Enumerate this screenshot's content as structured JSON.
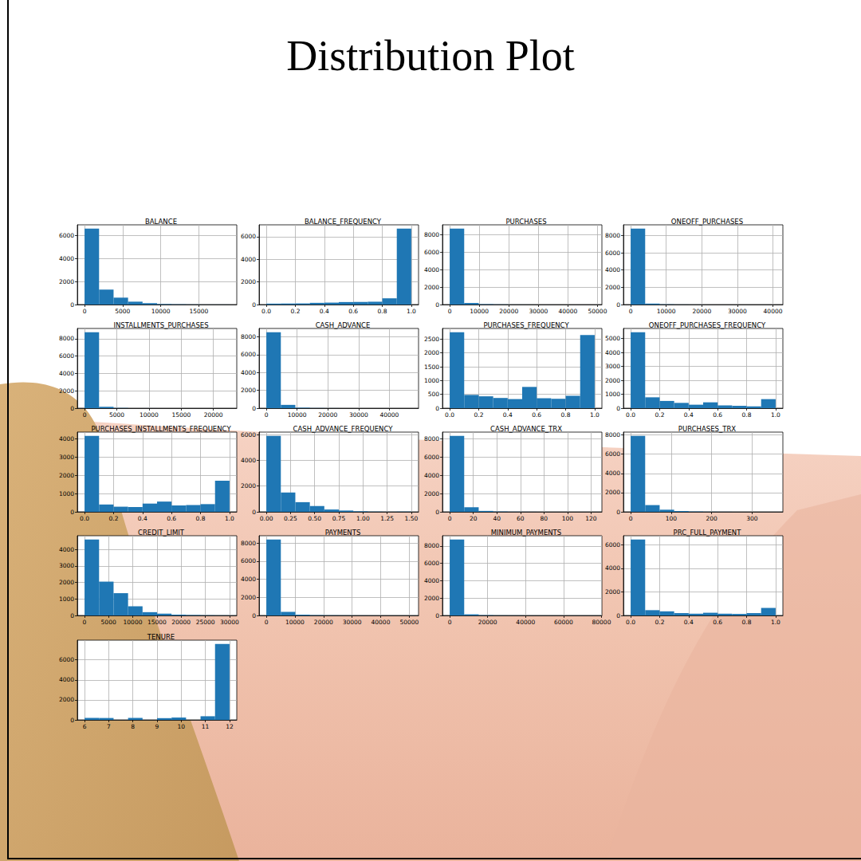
{
  "title": "Distribution Plot",
  "chart_data": [
    {
      "type": "histogram",
      "title": "BALANCE",
      "color": "#1f77b4",
      "grid": true,
      "bins": [
        0,
        1904.3,
        3808.6,
        5712.9,
        7617.3,
        9521.6,
        11425.9,
        13330.2,
        15234.5,
        17138.8,
        19043.1
      ],
      "values": [
        6600,
        1300,
        600,
        250,
        120,
        40,
        20,
        10,
        5,
        5
      ],
      "xlim": [
        -952.2,
        19995.3
      ],
      "xticks": [
        0,
        5000,
        10000,
        15000
      ],
      "ylim": [
        0,
        6930
      ],
      "yticks": [
        0,
        2000,
        4000,
        6000
      ]
    },
    {
      "type": "histogram",
      "title": "BALANCE_FREQUENCY",
      "color": "#1f77b4",
      "grid": true,
      "bins": [
        0,
        0.1,
        0.2,
        0.3,
        0.4,
        0.5,
        0.6,
        0.7,
        0.8,
        0.9,
        1
      ],
      "values": [
        80,
        90,
        100,
        150,
        170,
        220,
        230,
        250,
        550,
        6710
      ],
      "xlim": [
        -0.05,
        1.05
      ],
      "xticks": [
        {
          "value": 0,
          "label": "0.0"
        },
        0.2,
        0.4,
        0.6,
        0.8,
        {
          "value": 1,
          "label": "1.0"
        }
      ],
      "ylim": [
        0,
        7046
      ],
      "yticks": [
        0,
        2000,
        4000,
        6000
      ]
    },
    {
      "type": "histogram",
      "title": "PURCHASES",
      "color": "#1f77b4",
      "grid": true,
      "bins": [
        0,
        4904,
        9808,
        14712,
        19616,
        24520,
        29424,
        34328,
        39232,
        44136,
        49040
      ],
      "values": [
        8700,
        180,
        40,
        15,
        5,
        3,
        2,
        1,
        1,
        1
      ],
      "xlim": [
        -2452,
        51492
      ],
      "xticks": [
        0,
        10000,
        20000,
        30000,
        40000,
        50000
      ],
      "ylim": [
        0,
        9135
      ],
      "yticks": [
        0,
        2000,
        4000,
        6000,
        8000
      ]
    },
    {
      "type": "histogram",
      "title": "ONEOFF_PURCHASES",
      "color": "#1f77b4",
      "grid": true,
      "bins": [
        0,
        4076.1,
        8152.2,
        12228.3,
        16304.4,
        20380.5,
        24456.6,
        28532.7,
        32608.8,
        36684.9,
        40761
      ],
      "values": [
        8800,
        110,
        25,
        8,
        3,
        1,
        1,
        0,
        1,
        1
      ],
      "xlim": [
        -2038,
        42799
      ],
      "xticks": [
        0,
        10000,
        20000,
        30000,
        40000
      ],
      "ylim": [
        0,
        9240
      ],
      "yticks": [
        0,
        2000,
        4000,
        6000,
        8000
      ]
    },
    {
      "type": "histogram",
      "title": "INSTALLMENTS_PURCHASES",
      "color": "#1f77b4",
      "grid": true,
      "bins": [
        0,
        2250,
        4500,
        6750,
        9000,
        11250,
        13500,
        15750,
        18000,
        20250,
        22500
      ],
      "values": [
        8750,
        160,
        25,
        8,
        3,
        1,
        1,
        0,
        0,
        1
      ],
      "xlim": [
        -1125,
        23625
      ],
      "xticks": [
        0,
        5000,
        10000,
        15000,
        20000
      ],
      "ylim": [
        0,
        9188
      ],
      "yticks": [
        0,
        2000,
        4000,
        6000,
        8000
      ]
    },
    {
      "type": "histogram",
      "title": "CASH_ADVANCE",
      "color": "#1f77b4",
      "grid": true,
      "bins": [
        0,
        4713.7,
        9427.4,
        14141.1,
        18854.8,
        23568.5,
        28282.2,
        32995.9,
        37709.6,
        42423.3,
        47137
      ],
      "values": [
        8500,
        370,
        55,
        15,
        5,
        2,
        1,
        1,
        0,
        1
      ],
      "xlim": [
        -2357,
        49494
      ],
      "xticks": [
        0,
        10000,
        20000,
        30000,
        40000
      ],
      "ylim": [
        0,
        8925
      ],
      "yticks": [
        0,
        2000,
        4000,
        6000,
        8000
      ]
    },
    {
      "type": "histogram",
      "title": "PURCHASES_FREQUENCY",
      "color": "#1f77b4",
      "grid": true,
      "bins": [
        0,
        0.1,
        0.2,
        0.3,
        0.4,
        0.5,
        0.6,
        0.7,
        0.8,
        0.9,
        1
      ],
      "values": [
        2750,
        480,
        430,
        370,
        330,
        770,
        360,
        340,
        450,
        2650
      ],
      "xlim": [
        -0.05,
        1.05
      ],
      "xticks": [
        {
          "value": 0,
          "label": "0.0"
        },
        0.2,
        0.4,
        0.6,
        0.8,
        {
          "value": 1,
          "label": "1.0"
        }
      ],
      "ylim": [
        0,
        2888
      ],
      "yticks": [
        0,
        500,
        1000,
        1500,
        2000,
        2500
      ]
    },
    {
      "type": "histogram",
      "title": "ONEOFF_PURCHASES_FREQUENCY",
      "color": "#1f77b4",
      "grid": true,
      "bins": [
        0,
        0.1,
        0.2,
        0.3,
        0.4,
        0.5,
        0.6,
        0.7,
        0.8,
        0.9,
        1
      ],
      "values": [
        5450,
        780,
        520,
        380,
        250,
        420,
        200,
        170,
        130,
        650
      ],
      "xlim": [
        -0.05,
        1.05
      ],
      "xticks": [
        {
          "value": 0,
          "label": "0.0"
        },
        0.2,
        0.4,
        0.6,
        0.8,
        {
          "value": 1,
          "label": "1.0"
        }
      ],
      "ylim": [
        0,
        5723
      ],
      "yticks": [
        0,
        1000,
        2000,
        3000,
        4000,
        5000
      ]
    },
    {
      "type": "histogram",
      "title": "PURCHASES_INSTALLMENTS_FREQUENCY",
      "color": "#1f77b4",
      "grid": true,
      "bins": [
        0,
        0.1,
        0.2,
        0.3,
        0.4,
        0.5,
        0.6,
        0.7,
        0.8,
        0.9,
        1
      ],
      "values": [
        4150,
        400,
        280,
        260,
        450,
        560,
        350,
        370,
        420,
        1700
      ],
      "xlim": [
        -0.05,
        1.05
      ],
      "xticks": [
        {
          "value": 0,
          "label": "0.0"
        },
        0.2,
        0.4,
        0.6,
        0.8,
        {
          "value": 1,
          "label": "1.0"
        }
      ],
      "ylim": [
        0,
        4358
      ],
      "yticks": [
        0,
        1000,
        2000,
        3000,
        4000
      ]
    },
    {
      "type": "histogram",
      "title": "CASH_ADVANCE_FREQUENCY",
      "color": "#1f77b4",
      "grid": true,
      "bins": [
        0,
        0.15,
        0.3,
        0.45,
        0.6,
        0.75,
        0.9,
        1.05,
        1.2,
        1.35,
        1.5
      ],
      "values": [
        5900,
        1500,
        750,
        450,
        180,
        100,
        40,
        15,
        5,
        10
      ],
      "xlim": [
        -0.075,
        1.575
      ],
      "xticks": [
        {
          "value": 0,
          "label": "0.00"
        },
        0.25,
        {
          "value": 0.5,
          "label": "0.50"
        },
        0.75,
        {
          "value": 1,
          "label": "1.00"
        },
        1.25,
        {
          "value": 1.5,
          "label": "1.50"
        }
      ],
      "ylim": [
        0,
        6195
      ],
      "yticks": [
        0,
        2000,
        4000,
        6000
      ]
    },
    {
      "type": "histogram",
      "title": "CASH_ADVANCE_TRX",
      "color": "#1f77b4",
      "grid": true,
      "bins": [
        0,
        12.3,
        24.6,
        36.9,
        49.2,
        61.5,
        73.8,
        86.1,
        98.4,
        110.7,
        123
      ],
      "values": [
        8300,
        500,
        100,
        30,
        10,
        5,
        2,
        1,
        1,
        1
      ],
      "xlim": [
        -6.15,
        129.15
      ],
      "xticks": [
        0,
        20,
        40,
        60,
        80,
        100,
        120
      ],
      "ylim": [
        0,
        8715
      ],
      "yticks": [
        0,
        2000,
        4000,
        6000,
        8000
      ]
    },
    {
      "type": "histogram",
      "title": "PURCHASES_TRX",
      "color": "#1f77b4",
      "grid": true,
      "bins": [
        0,
        35.8,
        71.6,
        107.4,
        143.2,
        179,
        214.8,
        250.6,
        286.4,
        322.2,
        358
      ],
      "values": [
        7900,
        700,
        220,
        80,
        30,
        10,
        5,
        2,
        2,
        1
      ],
      "xlim": [
        -17.9,
        375.9
      ],
      "xticks": [
        0,
        100,
        200,
        300
      ],
      "ylim": [
        0,
        8295
      ],
      "yticks": [
        0,
        2000,
        4000,
        6000,
        8000
      ]
    },
    {
      "type": "histogram",
      "title": "CREDIT_LIMIT",
      "color": "#1f77b4",
      "grid": true,
      "bins": [
        50,
        3045,
        6040,
        9035,
        12030,
        15025,
        18020,
        21015,
        24010,
        27005,
        30000
      ],
      "values": [
        4600,
        2050,
        1350,
        550,
        200,
        110,
        50,
        25,
        10,
        5
      ],
      "xlim": [
        -1447.5,
        31497.5
      ],
      "xticks": [
        0,
        5000,
        10000,
        15000,
        20000,
        25000,
        30000
      ],
      "ylim": [
        0,
        4830
      ],
      "yticks": [
        0,
        1000,
        2000,
        3000,
        4000
      ]
    },
    {
      "type": "histogram",
      "title": "PAYMENTS",
      "color": "#1f77b4",
      "grid": true,
      "bins": [
        0,
        5072.1,
        10144.2,
        15216.3,
        20288.4,
        25360.5,
        30432.6,
        35504.7,
        40576.8,
        45648.9,
        50721
      ],
      "values": [
        8400,
        400,
        90,
        30,
        15,
        7,
        3,
        2,
        1,
        2
      ],
      "xlim": [
        -2536,
        53257
      ],
      "xticks": [
        0,
        10000,
        20000,
        30000,
        40000,
        50000
      ],
      "ylim": [
        0,
        8820
      ],
      "yticks": [
        0,
        2000,
        4000,
        6000,
        8000
      ]
    },
    {
      "type": "histogram",
      "title": "MINIMUM_PAYMENTS",
      "color": "#1f77b4",
      "grid": true,
      "bins": [
        0,
        7640.6,
        15281.2,
        22921.8,
        30562.4,
        38203,
        45843.6,
        53484.2,
        61124.8,
        68765.4,
        76406
      ],
      "values": [
        8750,
        130,
        30,
        10,
        5,
        1,
        1,
        0,
        0,
        1
      ],
      "xlim": [
        -3820,
        80226
      ],
      "xticks": [
        0,
        20000,
        40000,
        60000,
        80000
      ],
      "ylim": [
        0,
        9188
      ],
      "yticks": [
        0,
        2000,
        4000,
        6000,
        8000
      ]
    },
    {
      "type": "histogram",
      "title": "PRC_FULL_PAYMENT",
      "color": "#1f77b4",
      "grid": true,
      "bins": [
        0,
        0.1,
        0.2,
        0.3,
        0.4,
        0.5,
        0.6,
        0.7,
        0.8,
        0.9,
        1
      ],
      "values": [
        6450,
        450,
        350,
        200,
        150,
        230,
        150,
        130,
        200,
        640
      ],
      "xlim": [
        -0.05,
        1.05
      ],
      "xticks": [
        {
          "value": 0,
          "label": "0.0"
        },
        0.2,
        0.4,
        0.6,
        0.8,
        {
          "value": 1,
          "label": "1.0"
        }
      ],
      "ylim": [
        0,
        6773
      ],
      "yticks": [
        0,
        2000,
        4000,
        6000
      ]
    },
    {
      "type": "histogram",
      "title": "TENURE",
      "color": "#1f77b4",
      "grid": true,
      "bins": [
        6,
        6.6,
        7.2,
        7.8,
        8.4,
        9,
        9.6,
        10.2,
        10.8,
        11.4,
        12
      ],
      "values": [
        200,
        190,
        0,
        196,
        0,
        175,
        236,
        0,
        365,
        7584
      ],
      "xlim": [
        5.7,
        12.3
      ],
      "xticks": [
        6,
        7,
        8,
        9,
        10,
        11,
        12
      ],
      "ylim": [
        0,
        7963
      ],
      "yticks": [
        0,
        2000,
        4000,
        6000
      ]
    }
  ]
}
